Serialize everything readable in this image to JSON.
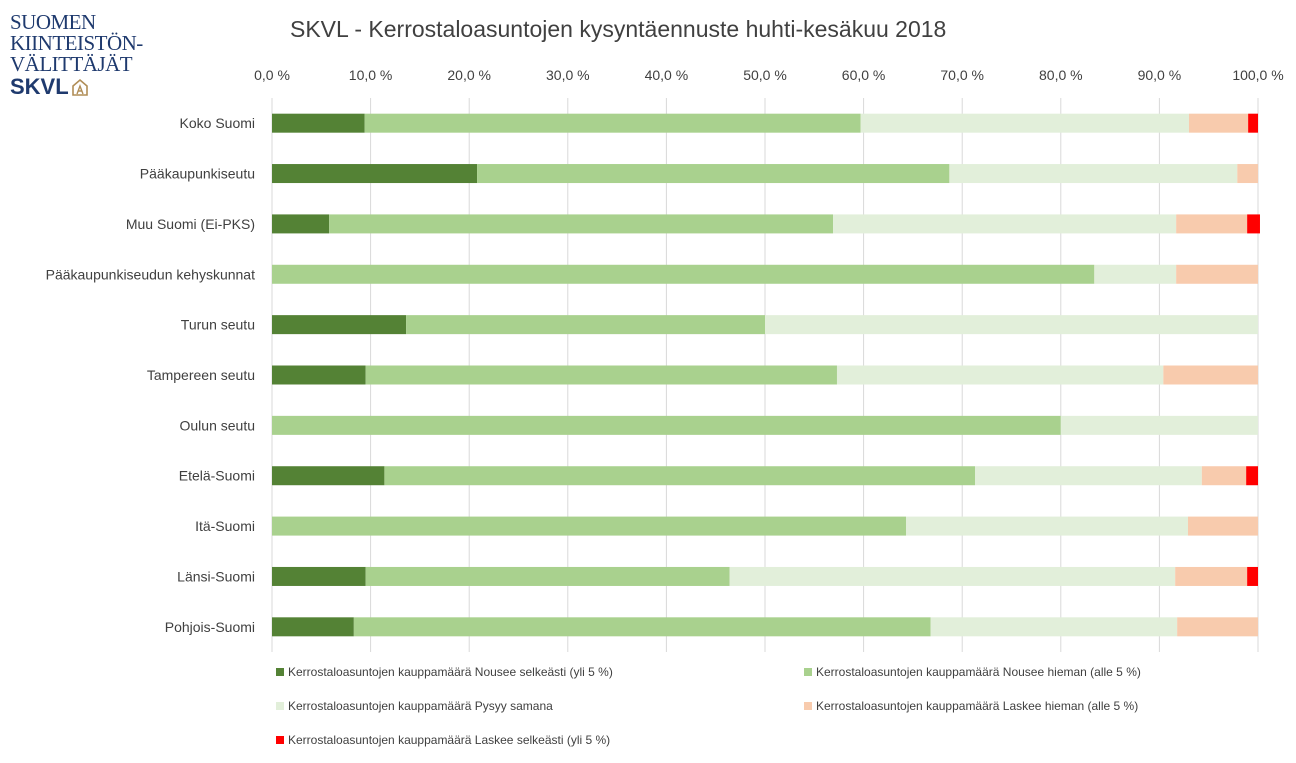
{
  "logo": {
    "lines": [
      "SUOMEN",
      "KIINTEISTÖN-",
      "VÄLITTÄJÄT"
    ],
    "brand": "SKVL"
  },
  "chart_data": {
    "type": "bar",
    "orientation": "horizontal",
    "stacked": "percent",
    "title": "SKVL - Kerrostaloasuntojen kysyntäennuste huhti-kesäkuu 2018",
    "xlim": [
      0,
      100
    ],
    "xticks": [
      "0,0 %",
      "10,0 %",
      "20,0 %",
      "30,0 %",
      "40,0 %",
      "50,0 %",
      "60,0 %",
      "70,0 %",
      "80,0 %",
      "90,0 %",
      "100,0 %"
    ],
    "axis_position": "top",
    "grid": true,
    "legend_position": "bottom",
    "categories": [
      "Koko Suomi",
      "Pääkaupunkiseutu",
      "Muu Suomi (Ei-PKS)",
      "Pääkaupunkiseudun kehyskunnat",
      "Turun seutu",
      "Tampereen seutu",
      "Oulun seutu",
      "Etelä-Suomi",
      "Itä-Suomi",
      "Länsi-Suomi",
      "Pohjois-Suomi"
    ],
    "series": [
      {
        "name": "Kerrostaloasuntojen kauppamäärä Nousee selkeästi (yli 5 %)",
        "color": "#548235",
        "values": [
          9.4,
          20.8,
          5.8,
          0,
          13.6,
          9.5,
          0,
          11.4,
          0,
          9.5,
          8.3
        ]
      },
      {
        "name": "Kerrostaloasuntojen kauppamäärä Nousee hieman (alle 5 %)",
        "color": "#a9d18e",
        "values": [
          50.3,
          47.9,
          51.1,
          83.4,
          36.4,
          47.8,
          80.0,
          59.9,
          64.3,
          36.9,
          58.5
        ]
      },
      {
        "name": "Kerrostaloasuntojen kauppamäärä Pysyy samana",
        "color": "#e2efda",
        "values": [
          33.3,
          29.2,
          34.8,
          8.3,
          50.0,
          33.1,
          20.0,
          23.0,
          28.6,
          45.2,
          25.0
        ]
      },
      {
        "name": "Kerrostaloasuntojen kauppamäärä Laskee hieman (alle 5 %)",
        "color": "#f8cbad",
        "values": [
          6.0,
          2.1,
          7.2,
          8.3,
          0,
          9.6,
          0,
          4.5,
          7.1,
          7.3,
          8.2
        ]
      },
      {
        "name": "Kerrostaloasuntojen kauppamäärä Laskee selkeästi (yli 5 %)",
        "color": "#ff0000",
        "values": [
          1.0,
          0,
          1.3,
          0,
          0,
          0,
          0,
          1.2,
          0,
          1.1,
          0
        ]
      }
    ]
  }
}
